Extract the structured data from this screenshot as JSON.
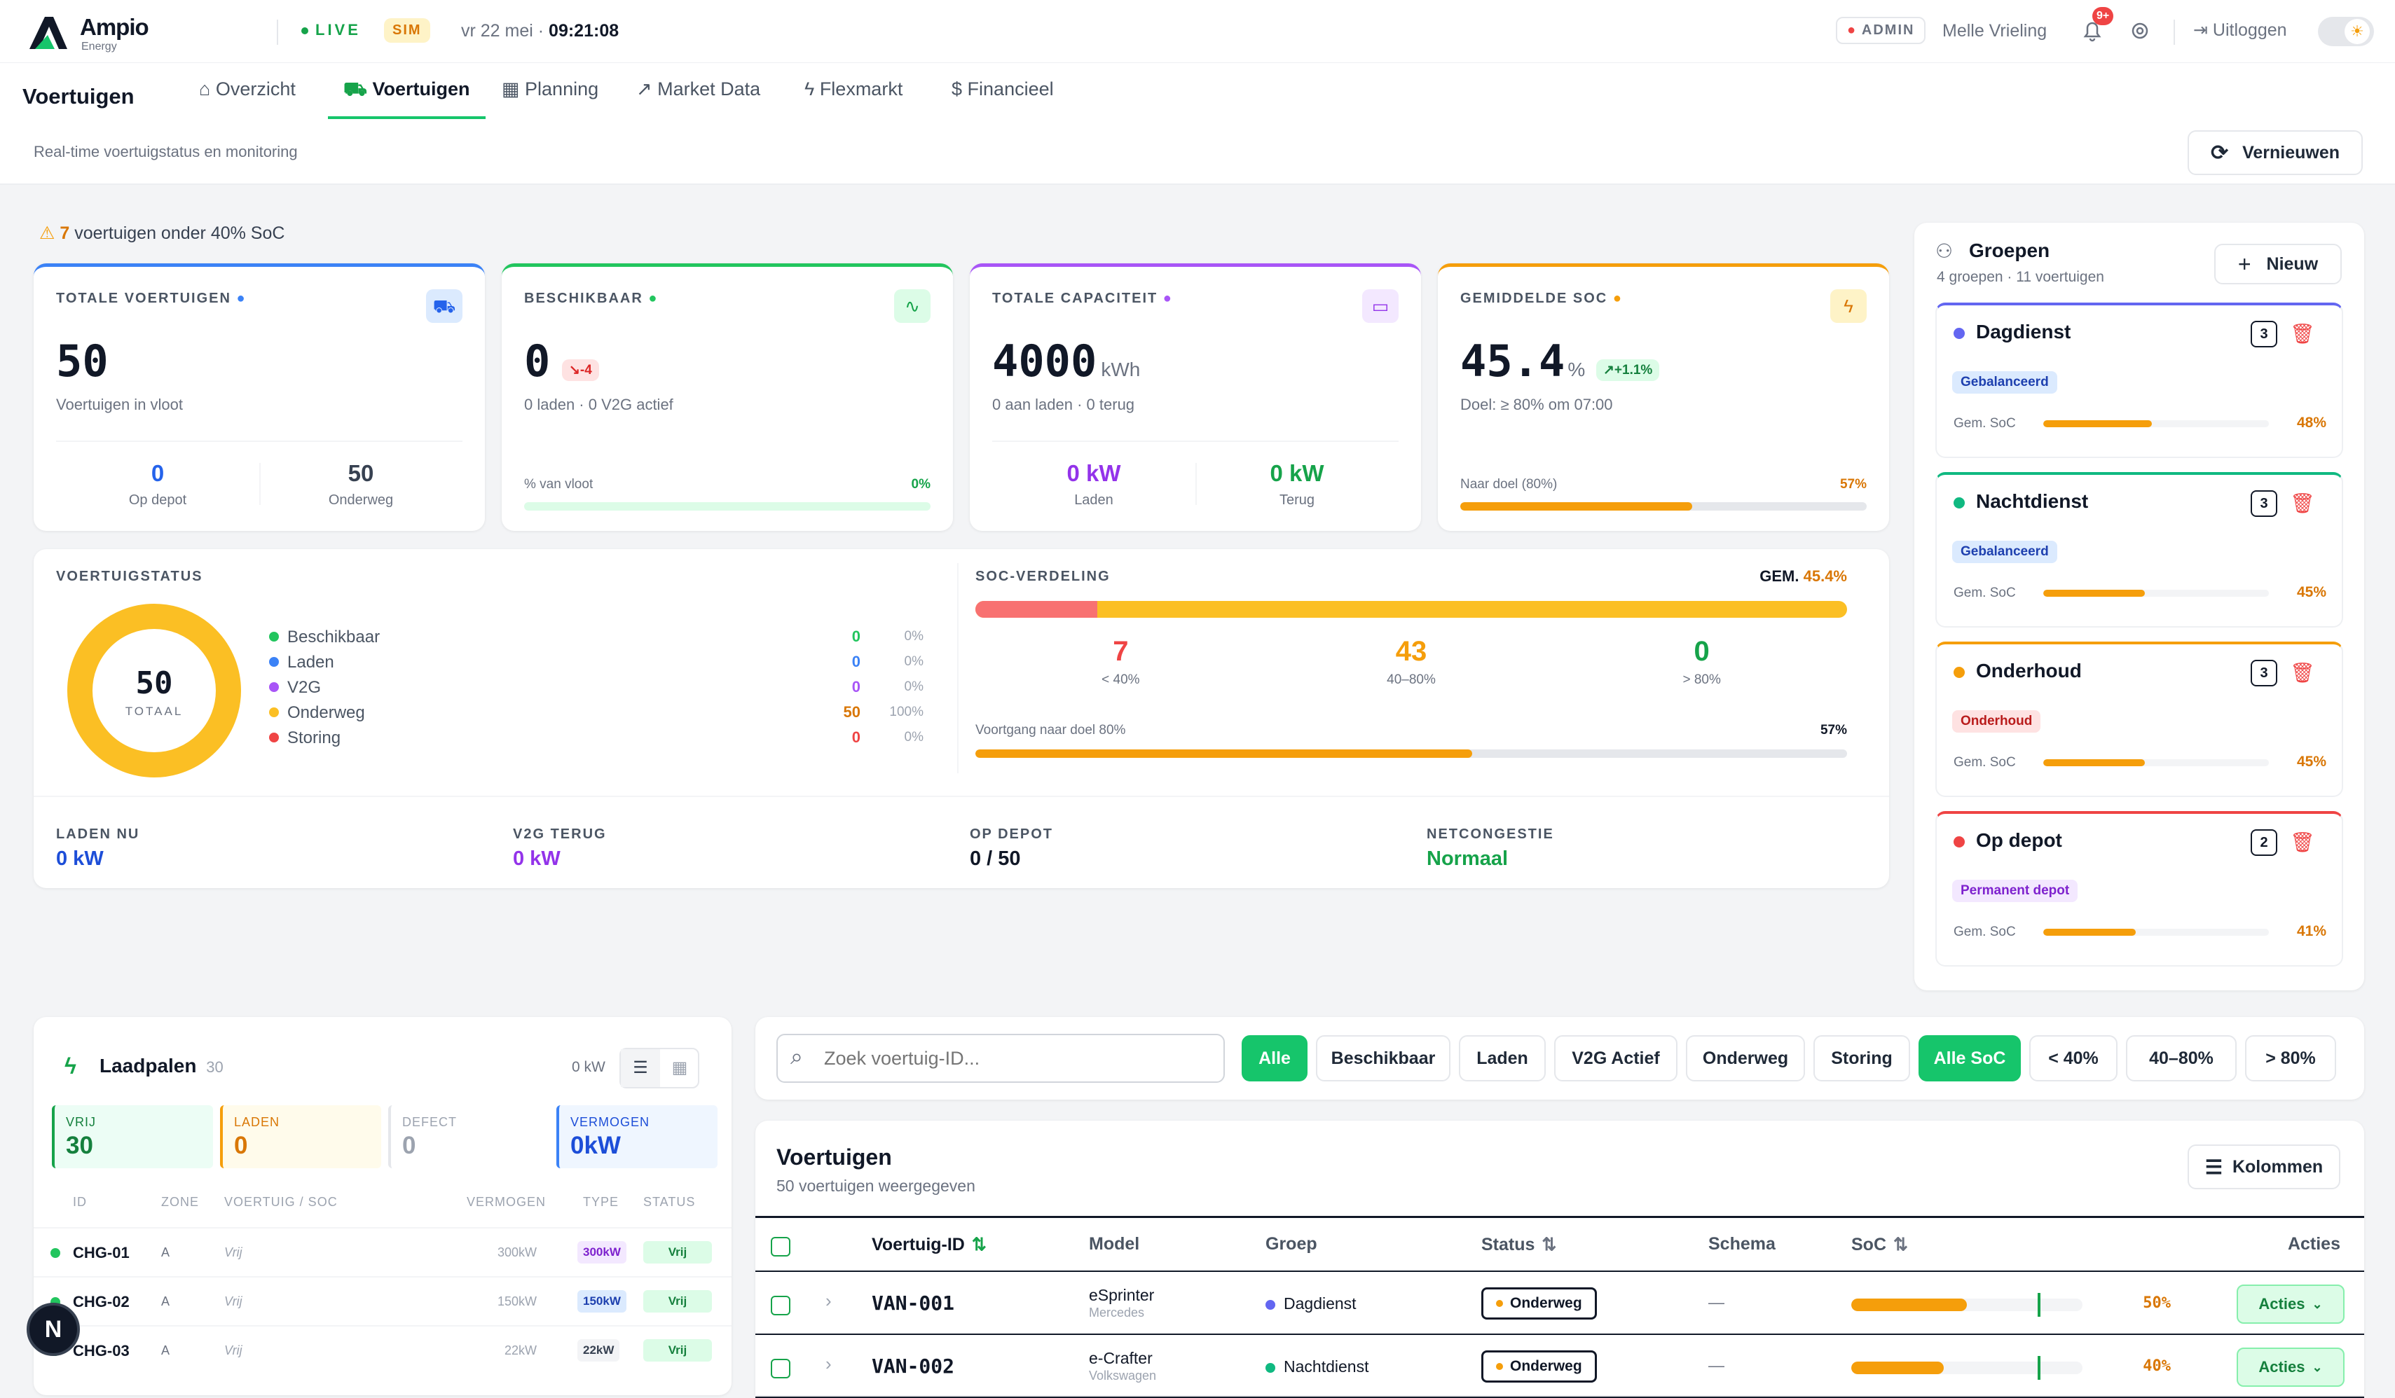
{
  "brand": {
    "name": "Ampio",
    "sub": "Energy"
  },
  "top": {
    "live": "LIVE",
    "sim": "SIM",
    "date": "vr 22 mei",
    "dot": "·",
    "time": "09:21:08",
    "admin": "ADMIN",
    "user": "Melle Vrieling",
    "notif": "9+",
    "logout": "Uitloggen"
  },
  "nav": {
    "title": "Voertuigen",
    "subtitle": "Real-time voertuigstatus en monitoring",
    "tabs": [
      "Overzicht",
      "Voertuigen",
      "Planning",
      "Market Data",
      "Flexmarkt",
      "Financieel"
    ],
    "refresh": "Vernieuwen"
  },
  "alert": {
    "count": "7",
    "text": "voertuigen onder 40% SoC"
  },
  "kpis": [
    {
      "label": "TOTALE VOERTUIGEN",
      "value": "50",
      "unit": "",
      "delta": "",
      "sub": "Voertuigen in vloot",
      "a_val": "0",
      "a_lbl": "Op depot",
      "b_val": "50",
      "b_lbl": "Onderweg",
      "color": "#3b82f6"
    },
    {
      "label": "BESCHIKBAAR",
      "value": "0",
      "unit": "",
      "delta": "-4",
      "sub": "0 laden · 0 V2G actief",
      "prog_lbl": "% van vloot",
      "prog_val": "0%",
      "progress": 0,
      "color": "#22c55e"
    },
    {
      "label": "TOTALE CAPACITEIT",
      "value": "4000",
      "unit": "kWh",
      "delta": "",
      "sub": "0 aan laden · 0 terug",
      "a_val": "0 kW",
      "a_lbl": "Laden",
      "b_val": "0 kW",
      "b_lbl": "Terug",
      "color": "#a855f7"
    },
    {
      "label": "GEMIDDELDE SOC",
      "value": "45.4",
      "unit": "%",
      "delta": "+1.1%",
      "sub": "Doel: ≥ 80% om 07:00",
      "prog_lbl": "Naar doel (80%)",
      "prog_val": "57%",
      "progress": 0.57,
      "color": "#f59e0b"
    }
  ],
  "status": {
    "title": "VOERTUIGSTATUS",
    "total": "50",
    "total_lbl": "TOTAAL",
    "items": [
      {
        "name": "Beschikbaar",
        "count": "0",
        "pct": "0%",
        "color": "#22c55e"
      },
      {
        "name": "Laden",
        "count": "0",
        "pct": "0%",
        "color": "#3b82f6"
      },
      {
        "name": "V2G",
        "count": "0",
        "pct": "0%",
        "color": "#a855f7"
      },
      {
        "name": "Onderweg",
        "count": "50",
        "pct": "100%",
        "color": "#fbbf24"
      },
      {
        "name": "Storing",
        "count": "0",
        "pct": "0%",
        "color": "#ef4444"
      }
    ]
  },
  "soc": {
    "title": "SOC-VERDELING",
    "gem_lbl": "GEM.",
    "gem_val": "45.4%",
    "low_frac": 0.14,
    "buckets": [
      {
        "value": "7",
        "label": "< 40%",
        "color": "#ef4444"
      },
      {
        "value": "43",
        "label": "40–80%",
        "color": "#f59e0b"
      },
      {
        "value": "0",
        "label": "> 80%",
        "color": "#16a34a"
      }
    ],
    "prog_lbl": "Voortgang naar doel 80%",
    "prog_val": "57%",
    "progress": 0.57
  },
  "bottom_stats": [
    {
      "label": "LADEN NU",
      "value": "0 kW",
      "color": "#1d4ed8"
    },
    {
      "label": "V2G TERUG",
      "value": "0 kW",
      "color": "#9333ea"
    },
    {
      "label": "OP DEPOT",
      "value": "0 / 50",
      "color": "#111827"
    },
    {
      "label": "NETCONGESTIE",
      "value": "Normaal",
      "color": "#16a34a"
    }
  ],
  "groups": {
    "title": "Groepen",
    "sub": "4 groepen · 11 voertuigen",
    "new_btn": "Nieuw",
    "soc_lbl": "Gem. SoC",
    "items": [
      {
        "name": "Dagdienst",
        "count": "3",
        "tag": "Gebalanceerd",
        "tag_bg": "#dbeafe",
        "tag_fg": "#1e40af",
        "soc": "48%",
        "frac": 0.48,
        "color": "#6366f1"
      },
      {
        "name": "Nachtdienst",
        "count": "3",
        "tag": "Gebalanceerd",
        "tag_bg": "#dbeafe",
        "tag_fg": "#1e40af",
        "soc": "45%",
        "frac": 0.45,
        "color": "#10b981"
      },
      {
        "name": "Onderhoud",
        "count": "3",
        "tag": "Onderhoud",
        "tag_bg": "#fee2e2",
        "tag_fg": "#b91c1c",
        "soc": "45%",
        "frac": 0.45,
        "color": "#f59e0b"
      },
      {
        "name": "Op depot",
        "count": "2",
        "tag": "Permanent depot",
        "tag_bg": "#f3e8ff",
        "tag_fg": "#7e22ce",
        "soc": "41%",
        "frac": 0.41,
        "color": "#ef4444"
      }
    ]
  },
  "chargers": {
    "title": "Laadpalen",
    "count": "30",
    "power": "0 kW",
    "tiles": [
      {
        "label": "VRIJ",
        "value": "30",
        "fg": "#15803d",
        "bg": "#ecfdf5",
        "border": "#16a34a"
      },
      {
        "label": "LADEN",
        "value": "0",
        "fg": "#d97706",
        "bg": "#fffbeb",
        "border": "#f59e0b"
      },
      {
        "label": "DEFECT",
        "value": "0",
        "fg": "#9ca3af",
        "bg": "#ffffff",
        "border": "#e5e7eb"
      },
      {
        "label": "VERMOGEN",
        "value": "0kW",
        "fg": "#1d4ed8",
        "bg": "#eff6ff",
        "border": "#3b82f6"
      }
    ],
    "cols": [
      "ID",
      "ZONE",
      "VOERTUIG / SOC",
      "VERMOGEN",
      "TYPE",
      "STATUS"
    ],
    "rows": [
      {
        "id": "CHG-01",
        "zone": "A",
        "veh": "Vrij",
        "power": "300kW",
        "type": "300kW",
        "status": "Vrij",
        "tbg": "#f3e8ff",
        "tfg": "#7e22ce"
      },
      {
        "id": "CHG-02",
        "zone": "A",
        "veh": "Vrij",
        "power": "150kW",
        "type": "150kW",
        "status": "Vrij",
        "tbg": "#dbeafe",
        "tfg": "#1e40af"
      },
      {
        "id": "CHG-03",
        "zone": "A",
        "veh": "Vrij",
        "power": "22kW",
        "type": "22kW",
        "status": "Vrij",
        "tbg": "#f3f4f6",
        "tfg": "#374151"
      }
    ]
  },
  "filters": {
    "placeholder": "Zoek voertuig-ID...",
    "status": [
      "Alle",
      "Beschikbaar",
      "Laden",
      "V2G Actief",
      "Onderweg",
      "Storing"
    ],
    "soc": [
      "Alle SoC",
      "< 40%",
      "40–80%",
      "> 80%"
    ]
  },
  "vehicles": {
    "title": "Voertuigen",
    "sub": "50 voertuigen weergegeven",
    "columns_btn": "Kolommen",
    "cols": [
      "Voertuig-ID",
      "Model",
      "Groep",
      "Status",
      "Schema",
      "SoC",
      "Acties"
    ],
    "rows": [
      {
        "id": "VAN-001",
        "model": "eSprinter",
        "brand": "Mercedes",
        "group": "Dagdienst",
        "gcolor": "#6366f1",
        "status": "Onderweg",
        "schema": "—",
        "soc": "50%",
        "frac": 0.5,
        "actions": "Acties"
      },
      {
        "id": "VAN-002",
        "model": "e-Crafter",
        "brand": "Volkswagen",
        "group": "Nachtdienst",
        "gcolor": "#10b981",
        "status": "Onderweg",
        "schema": "—",
        "soc": "40%",
        "frac": 0.4,
        "actions": "Acties"
      }
    ]
  },
  "fab": "N"
}
